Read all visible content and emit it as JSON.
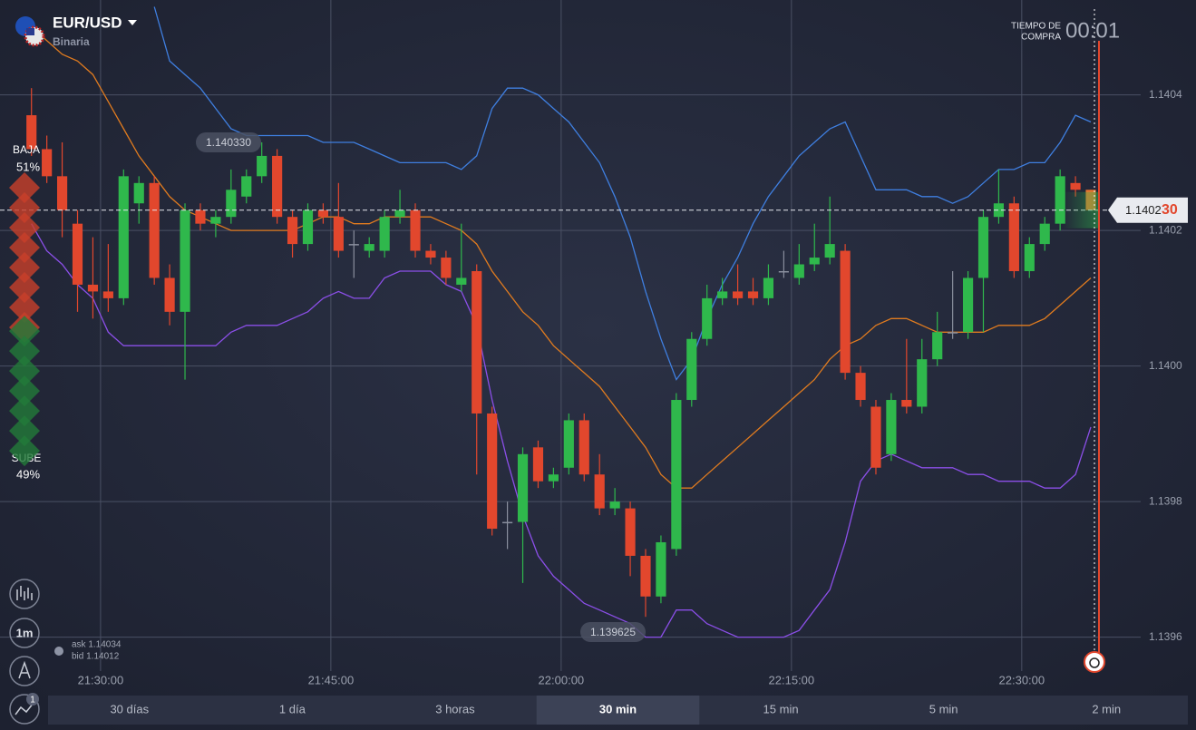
{
  "header": {
    "symbol": "EUR/USD",
    "mode": "Binaria",
    "timer_label_1": "TIEMPO DE",
    "timer_label_2": "COMPRA",
    "timer": "00:01"
  },
  "sentiment": {
    "down": {
      "label": "BAJA",
      "value": 51,
      "value_label": "51%",
      "color": "#c9402b"
    },
    "up": {
      "label": "SUBE",
      "value": 49,
      "value_label": "49%",
      "color": "#237a3a"
    }
  },
  "quote": {
    "ask": "ask 1.14034",
    "bid": "bid 1.14012"
  },
  "toolbar": {
    "interval": "1m",
    "badge": "1"
  },
  "timeframes": {
    "items": [
      "30 días",
      "1 día",
      "3 horas",
      "30 min",
      "15 min",
      "5 min",
      "2 min"
    ],
    "active": 3
  },
  "chart_data": {
    "type": "candlestick",
    "xlim": [
      "21:23:27",
      "22:41:21"
    ],
    "xticks": [
      "21:30:00",
      "21:45:00",
      "22:00:00",
      "22:15:00",
      "22:30:00"
    ],
    "ylim": [
      1.13955,
      1.14054
    ],
    "yticks": [
      1.1396,
      1.1398,
      {
        "value": 1.14,
        "label": "1.1400"
      },
      1.1402,
      1.1404
    ],
    "grid": true,
    "up_color": "#2fb84c",
    "down_color": "#e2472d",
    "flat_color": "#8a8f9e",
    "current_color": "#e8732f",
    "candles": {
      "time": [
        "21:25",
        "21:26",
        "21:27",
        "21:28",
        "21:29",
        "21:30",
        "21:31",
        "21:32",
        "21:33",
        "21:34",
        "21:35",
        "21:36",
        "21:37",
        "21:38",
        "21:39",
        "21:40",
        "21:41",
        "21:42",
        "21:43",
        "21:44",
        "21:45",
        "21:46",
        "21:47",
        "21:48",
        "21:49",
        "21:50",
        "21:51",
        "21:52",
        "21:53",
        "21:54",
        "21:55",
        "21:56",
        "21:57",
        "21:58",
        "21:59",
        "22:00",
        "22:01",
        "22:02",
        "22:03",
        "22:04",
        "22:05",
        "22:06",
        "22:07",
        "22:08",
        "22:09",
        "22:10",
        "22:11",
        "22:12",
        "22:13",
        "22:14",
        "22:15",
        "22:16",
        "22:17",
        "22:18",
        "22:19",
        "22:20",
        "22:21",
        "22:22",
        "22:23",
        "22:24",
        "22:25",
        "22:26",
        "22:27",
        "22:28",
        "22:29",
        "22:30",
        "22:31",
        "22:32",
        "22:33",
        "22:34"
      ],
      "open": [
        1.14037,
        1.14032,
        1.14028,
        1.14021,
        1.14012,
        1.14011,
        1.1401,
        1.14024,
        1.14027,
        1.14013,
        1.14008,
        1.14023,
        1.14021,
        1.14022,
        1.14025,
        1.14028,
        1.14031,
        1.14022,
        1.14018,
        1.14023,
        1.14022,
        1.14018,
        1.14017,
        1.14017,
        1.14022,
        1.14023,
        1.14017,
        1.14016,
        1.14012,
        1.14014,
        1.13993,
        1.13977,
        1.13977,
        1.13988,
        1.13983,
        1.13985,
        1.13992,
        1.13984,
        1.13979,
        1.13979,
        1.13972,
        1.13966,
        1.13973,
        1.13995,
        1.14004,
        1.1401,
        1.14011,
        1.14011,
        1.1401,
        1.14014,
        1.14013,
        1.14015,
        1.14016,
        1.14017,
        1.13999,
        1.13994,
        1.13987,
        1.13995,
        1.13994,
        1.14001,
        1.14005,
        1.14005,
        1.14013,
        1.14022,
        1.14024,
        1.14014,
        1.14018,
        1.14021,
        1.14027,
        1.14026
      ],
      "high": [
        1.14041,
        1.14034,
        1.14033,
        1.14023,
        1.14019,
        1.14018,
        1.14029,
        1.14028,
        1.14028,
        1.14015,
        1.14024,
        1.14024,
        1.14023,
        1.14029,
        1.14029,
        1.14033,
        1.14032,
        1.14023,
        1.14024,
        1.14024,
        1.14027,
        1.1402,
        1.14019,
        1.14023,
        1.14026,
        1.14024,
        1.14018,
        1.14017,
        1.14021,
        1.14015,
        1.13994,
        1.1398,
        1.13988,
        1.13989,
        1.13985,
        1.13993,
        1.13993,
        1.13987,
        1.13982,
        1.1398,
        1.13973,
        1.13975,
        1.13996,
        1.14005,
        1.14012,
        1.14013,
        1.14015,
        1.14013,
        1.14015,
        1.14017,
        1.14018,
        1.14021,
        1.14025,
        1.14018,
        1.14,
        1.13995,
        1.13996,
        1.14004,
        1.14004,
        1.14008,
        1.14014,
        1.14014,
        1.14023,
        1.14029,
        1.14025,
        1.14019,
        1.14022,
        1.14029,
        1.14028,
        1.14026
      ],
      "low": [
        1.14031,
        1.14027,
        1.14019,
        1.14008,
        1.14007,
        1.14008,
        1.14009,
        1.14021,
        1.14012,
        1.14006,
        1.13998,
        1.1402,
        1.14019,
        1.14021,
        1.14024,
        1.14027,
        1.14021,
        1.14016,
        1.14017,
        1.14021,
        1.14016,
        1.14013,
        1.14016,
        1.14016,
        1.14021,
        1.14016,
        1.14015,
        1.14012,
        1.14011,
        1.13984,
        1.13975,
        1.13973,
        1.13968,
        1.13982,
        1.13982,
        1.13984,
        1.13983,
        1.13978,
        1.13978,
        1.13969,
        1.13963,
        1.13965,
        1.13972,
        1.13994,
        1.14003,
        1.14009,
        1.14009,
        1.14009,
        1.14009,
        1.14013,
        1.14012,
        1.14014,
        1.14015,
        1.13998,
        1.13994,
        1.13984,
        1.13986,
        1.13993,
        1.13993,
        1.14,
        1.14004,
        1.14004,
        1.14005,
        1.14021,
        1.14013,
        1.14013,
        1.14017,
        1.1402,
        1.14025,
        1.14023
      ],
      "close": [
        1.14032,
        1.14028,
        1.14023,
        1.14012,
        1.14011,
        1.1401,
        1.14028,
        1.14027,
        1.14013,
        1.14008,
        1.14023,
        1.14021,
        1.14022,
        1.14026,
        1.14028,
        1.14031,
        1.14022,
        1.14018,
        1.14023,
        1.14022,
        1.14017,
        1.14018,
        1.14018,
        1.14022,
        1.14023,
        1.14017,
        1.14016,
        1.14013,
        1.14013,
        1.13993,
        1.13976,
        1.13977,
        1.13987,
        1.13983,
        1.13984,
        1.13992,
        1.13984,
        1.13979,
        1.1398,
        1.13972,
        1.13966,
        1.13974,
        1.13995,
        1.14004,
        1.1401,
        1.14011,
        1.1401,
        1.1401,
        1.14013,
        1.14014,
        1.14015,
        1.14016,
        1.14018,
        1.13999,
        1.13995,
        1.13985,
        1.13995,
        1.13994,
        1.14001,
        1.14005,
        1.14005,
        1.14013,
        1.14022,
        1.14024,
        1.14014,
        1.14018,
        1.14021,
        1.14028,
        1.14026,
        1.14023
      ]
    },
    "series": [
      {
        "color": "#3f7fe0",
        "values": [
          null,
          null,
          null,
          null,
          null,
          null,
          null,
          null,
          1.14053,
          1.14045,
          1.14043,
          1.14041,
          1.14038,
          1.14035,
          1.14034,
          1.14034,
          1.14034,
          1.14034,
          1.14034,
          1.14033,
          1.14033,
          1.14033,
          1.14032,
          1.14031,
          1.1403,
          1.1403,
          1.1403,
          1.1403,
          1.14029,
          1.14031,
          1.14038,
          1.14041,
          1.14041,
          1.1404,
          1.14038,
          1.14036,
          1.14033,
          1.1403,
          1.14025,
          1.14019,
          1.14011,
          1.14004,
          1.13998,
          1.14001,
          1.14007,
          1.14012,
          1.14016,
          1.14021,
          1.14025,
          1.14028,
          1.14031,
          1.14033,
          1.14035,
          1.14036,
          1.14031,
          1.14026,
          1.14026,
          1.14026,
          1.14025,
          1.14025,
          1.14024,
          1.14025,
          1.14027,
          1.14029,
          1.14029,
          1.1403,
          1.1403,
          1.14033,
          1.14037,
          1.14036
        ]
      },
      {
        "color": "#e07b1f",
        "values": [
          1.1405,
          1.14048,
          1.14046,
          1.14045,
          1.14043,
          1.14039,
          1.14035,
          1.14031,
          1.14028,
          1.14025,
          1.14023,
          1.14022,
          1.14021,
          1.1402,
          1.1402,
          1.1402,
          1.1402,
          1.1402,
          1.14021,
          1.14022,
          1.14022,
          1.14021,
          1.14021,
          1.14022,
          1.14022,
          1.14022,
          1.14022,
          1.14021,
          1.1402,
          1.14018,
          1.14014,
          1.14011,
          1.14008,
          1.14006,
          1.14003,
          1.14001,
          1.13999,
          1.13997,
          1.13994,
          1.13991,
          1.13988,
          1.13984,
          1.13982,
          1.13982,
          1.13984,
          1.13986,
          1.13988,
          1.1399,
          1.13992,
          1.13994,
          1.13996,
          1.13998,
          1.14001,
          1.14003,
          1.14004,
          1.14006,
          1.14007,
          1.14007,
          1.14006,
          1.14005,
          1.14005,
          1.14005,
          1.14005,
          1.14006,
          1.14006,
          1.14006,
          1.14007,
          1.14009,
          1.14011,
          1.14013
        ]
      },
      {
        "color": "#8b4fe8",
        "values": [
          1.14021,
          1.14017,
          1.14015,
          1.14012,
          1.1401,
          1.14005,
          1.14003,
          1.14003,
          1.14003,
          1.14003,
          1.14003,
          1.14003,
          1.14003,
          1.14005,
          1.14006,
          1.14006,
          1.14006,
          1.14007,
          1.14008,
          1.1401,
          1.14011,
          1.1401,
          1.1401,
          1.14013,
          1.14014,
          1.14014,
          1.14014,
          1.14012,
          1.14011,
          1.14006,
          1.13995,
          1.13986,
          1.13978,
          1.13972,
          1.13969,
          1.13967,
          1.13965,
          1.13964,
          1.13963,
          1.13962,
          1.1396,
          1.1396,
          1.13964,
          1.13964,
          1.13962,
          1.13961,
          1.1396,
          1.1396,
          1.1396,
          1.1396,
          1.13961,
          1.13964,
          1.13967,
          1.13974,
          1.13983,
          1.13986,
          1.13987,
          1.13986,
          1.13985,
          1.13985,
          1.13985,
          1.13984,
          1.13984,
          1.13983,
          1.13983,
          1.13983,
          1.13982,
          1.13982,
          1.13984,
          1.13991
        ]
      }
    ],
    "annotations": [
      {
        "value": 1.14033,
        "label": "1.140330"
      },
      {
        "value": 1.139625,
        "label": "1.139625"
      }
    ],
    "current_price": {
      "value": 1.14023,
      "label_main": "1.1402",
      "label_pip": "30"
    }
  }
}
